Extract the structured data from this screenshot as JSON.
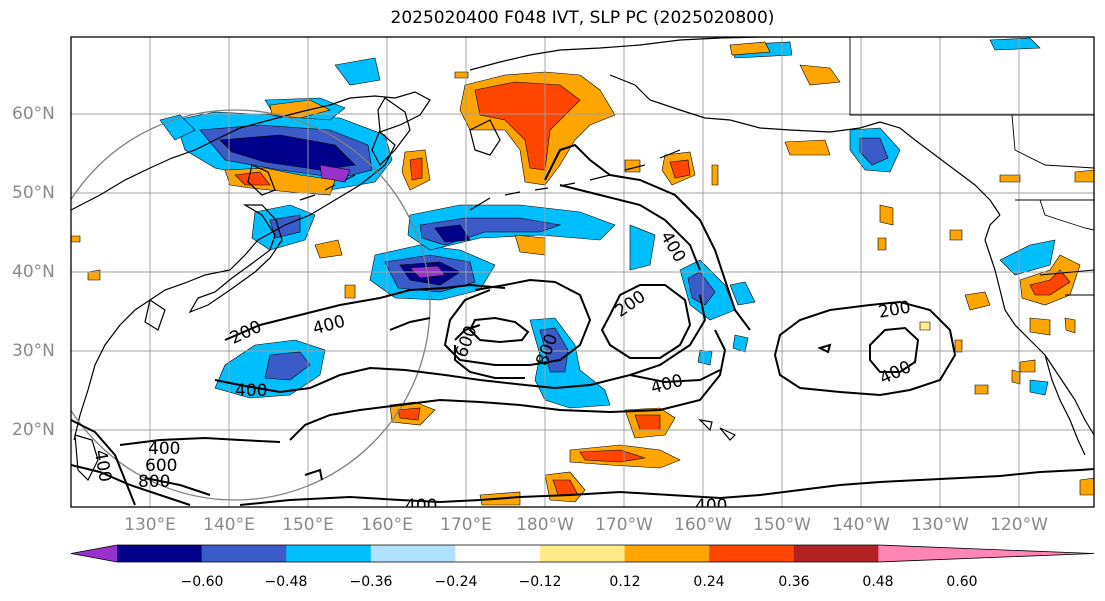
{
  "title": "2025020400 F048 IVT, SLP PC (2025020800)",
  "lat_labels": [
    "60°N",
    "50°N",
    "40°N",
    "30°N",
    "20°N"
  ],
  "lon_labels": [
    "130°E",
    "140°E",
    "150°E",
    "160°E",
    "170°E",
    "180°W",
    "170°W",
    "160°W",
    "150°W",
    "140°W",
    "130°W",
    "120°W"
  ],
  "contour_labels": [
    "200",
    "400",
    "600",
    "800",
    "400",
    "400",
    "200",
    "400",
    "200",
    "400",
    "400",
    "600",
    "800",
    "400",
    "400",
    "400"
  ],
  "colorbar": {
    "colors": [
      "#9932cc",
      "#00008b",
      "#3b5bc8",
      "#00bfff",
      "#b0e2ff",
      "#ffffff",
      "#ffeb8a",
      "#ffa500",
      "#ff4500",
      "#b22222",
      "#ff85b5"
    ],
    "ticks": [
      "−0.60",
      "−0.48",
      "−0.36",
      "−0.24",
      "−0.12",
      "0.12",
      "0.24",
      "0.36",
      "0.48",
      "0.60"
    ]
  },
  "colors": {
    "land_outline": "#000000",
    "grid": "#a0a0a0",
    "axis_text": "#8a8a8a"
  }
}
